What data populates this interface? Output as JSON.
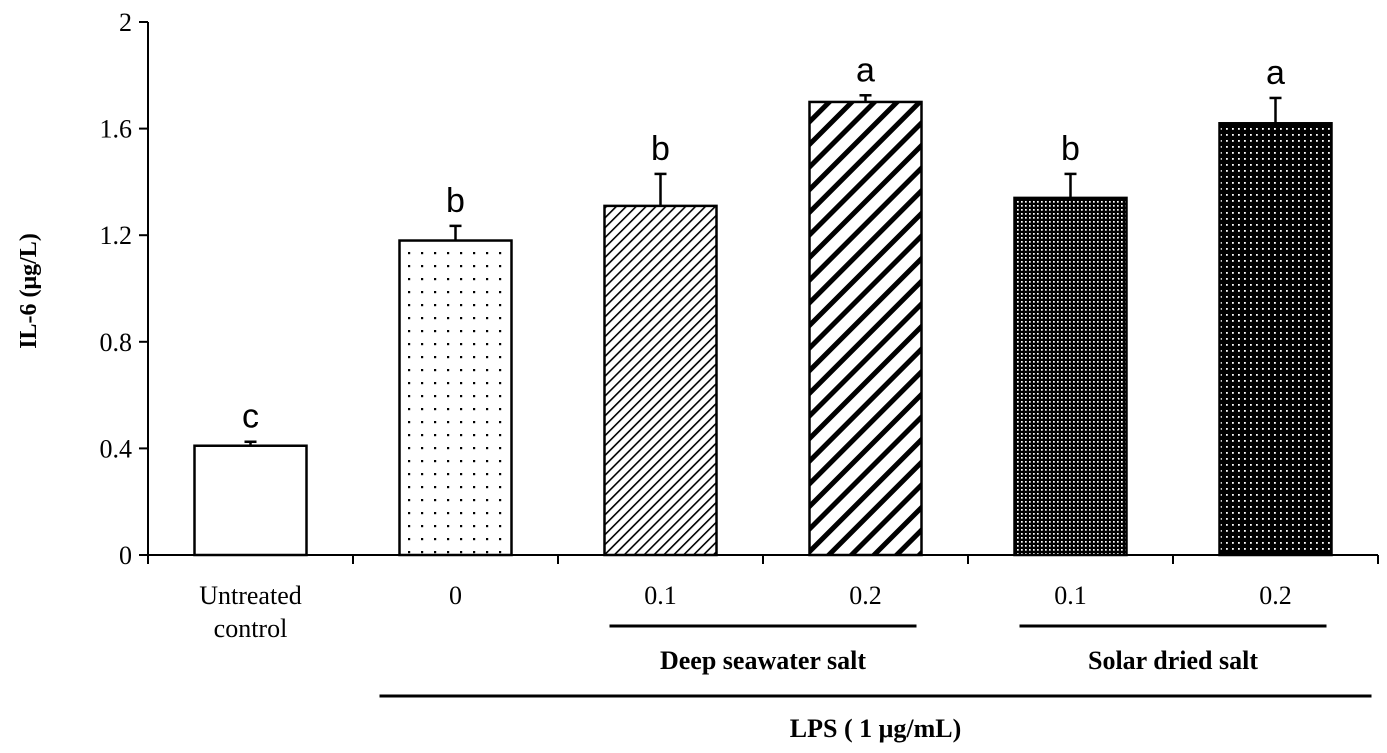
{
  "chart_data": {
    "type": "bar",
    "title": "",
    "ylabel": "IL-6 (μg/L)",
    "xlabel": "LPS ( 1 μg/mL)",
    "ylim": [
      0,
      2
    ],
    "yticks": [
      "0",
      "0.4",
      "0.8",
      "1.2",
      "1.6",
      "2"
    ],
    "categories": [
      {
        "label_lines": [
          "Untreated",
          "control"
        ],
        "value": 0.41,
        "error": 0.015,
        "sig": "c",
        "pattern": "empty"
      },
      {
        "label_lines": [
          "0"
        ],
        "value": 1.18,
        "error": 0.055,
        "sig": "b",
        "pattern": "sparse-dots"
      },
      {
        "label_lines": [
          "0.1"
        ],
        "value": 1.31,
        "error": 0.12,
        "sig": "b",
        "pattern": "fine-diagonal"
      },
      {
        "label_lines": [
          "0.2"
        ],
        "value": 1.7,
        "error": 0.025,
        "sig": "a",
        "pattern": "wide-diagonal"
      },
      {
        "label_lines": [
          "0.1"
        ],
        "value": 1.34,
        "error": 0.09,
        "sig": "b",
        "pattern": "dense-dots"
      },
      {
        "label_lines": [
          "0.2"
        ],
        "value": 1.62,
        "error": 0.095,
        "sig": "a",
        "pattern": "dark-dots"
      }
    ],
    "groups": [
      {
        "label": "Deep seawater salt",
        "from": 2,
        "to": 3
      },
      {
        "label": "Solar dried salt",
        "from": 4,
        "to": 5
      }
    ],
    "outer_group": {
      "label": "LPS ( 1 μg/mL)",
      "from": 1,
      "to": 5
    },
    "grid": false,
    "legend": "none"
  }
}
